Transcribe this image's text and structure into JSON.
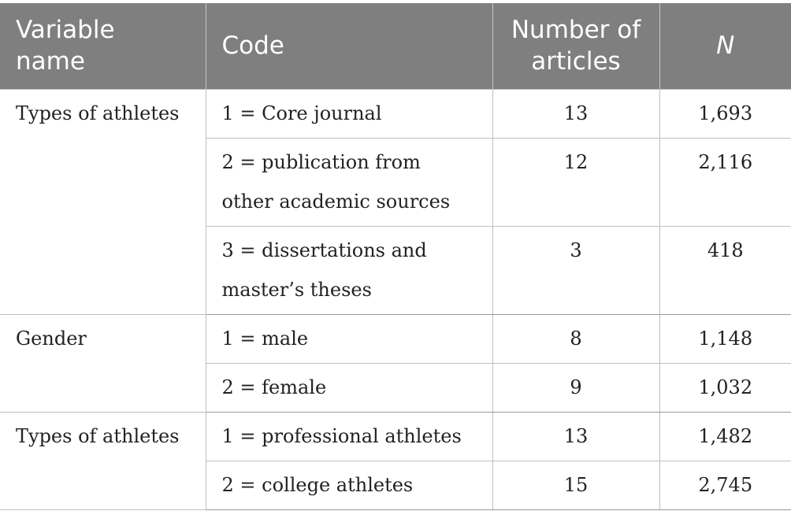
{
  "header": {
    "variable_name": "Variable name",
    "code": "Code",
    "number_of_articles": "Number of articles",
    "n": "N"
  },
  "groups": [
    {
      "variable": "Types of athletes",
      "rows": [
        {
          "code": "1 = Core journal",
          "articles": "13",
          "n": "1,693"
        },
        {
          "code": "2 = publication from other academic sources",
          "articles": "12",
          "n": "2,116"
        },
        {
          "code": "3 = dissertations and master’s theses",
          "articles": "3",
          "n": "418"
        }
      ]
    },
    {
      "variable": "Gender",
      "rows": [
        {
          "code": "1 = male",
          "articles": "8",
          "n": "1,148"
        },
        {
          "code": "2 = female",
          "articles": "9",
          "n": "1,032"
        }
      ]
    },
    {
      "variable": "Types of athletes",
      "rows": [
        {
          "code": "1 = professional athletes",
          "articles": "13",
          "n": "1,482"
        },
        {
          "code": "2 = college athletes",
          "articles": "15",
          "n": "2,745"
        }
      ]
    }
  ],
  "colors": {
    "header_bg": "#7f7f7f",
    "header_text": "#ffffff",
    "border": "#c0c0c0"
  }
}
